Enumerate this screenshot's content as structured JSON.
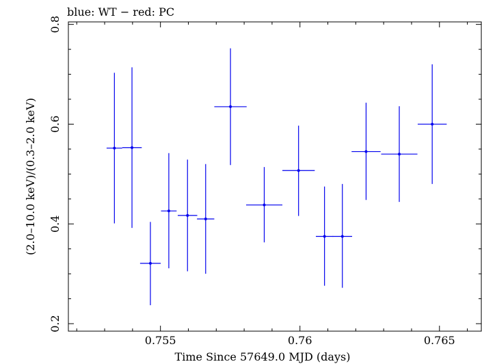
{
  "chart_data": {
    "type": "scatter",
    "title": "blue: WT − red: PC",
    "xlabel": "Time Since 57649.0 MJD (days)",
    "ylabel": "(2.0–10.0 keV)/(0.3–2.0 keV)",
    "xlim": [
      0.7517,
      0.7665
    ],
    "ylim": [
      0.185,
      0.805
    ],
    "x_ticks": [
      0.755,
      0.76,
      0.765
    ],
    "x_tick_labels": [
      "0.755",
      "0.76",
      "0.765"
    ],
    "y_ticks": [
      0.2,
      0.4,
      0.6,
      0.8
    ],
    "y_tick_labels": [
      "0.2",
      "0.4",
      "0.6",
      "0.8"
    ],
    "series": [
      {
        "name": "WT",
        "color": "#0000ee",
        "points": [
          {
            "x": 0.75335,
            "xerr": 0.00028,
            "y": 0.552,
            "ylo": 0.401,
            "yhi": 0.703
          },
          {
            "x": 0.75398,
            "xerr": 0.00035,
            "y": 0.553,
            "ylo": 0.392,
            "yhi": 0.714
          },
          {
            "x": 0.75464,
            "xerr": 0.00037,
            "y": 0.321,
            "ylo": 0.237,
            "yhi": 0.404
          },
          {
            "x": 0.7553,
            "xerr": 0.00028,
            "y": 0.426,
            "ylo": 0.311,
            "yhi": 0.542
          },
          {
            "x": 0.75597,
            "xerr": 0.00035,
            "y": 0.417,
            "ylo": 0.305,
            "yhi": 0.529
          },
          {
            "x": 0.75662,
            "xerr": 0.00031,
            "y": 0.41,
            "ylo": 0.3,
            "yhi": 0.52
          },
          {
            "x": 0.75751,
            "xerr": 0.00058,
            "y": 0.635,
            "ylo": 0.518,
            "yhi": 0.752
          },
          {
            "x": 0.75872,
            "xerr": 0.00065,
            "y": 0.438,
            "ylo": 0.363,
            "yhi": 0.514
          },
          {
            "x": 0.75995,
            "xerr": 0.00058,
            "y": 0.507,
            "ylo": 0.416,
            "yhi": 0.597
          },
          {
            "x": 0.76088,
            "xerr": 0.00031,
            "y": 0.375,
            "ylo": 0.276,
            "yhi": 0.475
          },
          {
            "x": 0.76152,
            "xerr": 0.00035,
            "y": 0.375,
            "ylo": 0.272,
            "yhi": 0.48
          },
          {
            "x": 0.76237,
            "xerr": 0.00052,
            "y": 0.545,
            "ylo": 0.448,
            "yhi": 0.643
          },
          {
            "x": 0.76356,
            "xerr": 0.00065,
            "y": 0.54,
            "ylo": 0.444,
            "yhi": 0.636
          },
          {
            "x": 0.76474,
            "xerr": 0.00052,
            "y": 0.6,
            "ylo": 0.48,
            "yhi": 0.72
          }
        ]
      }
    ]
  }
}
